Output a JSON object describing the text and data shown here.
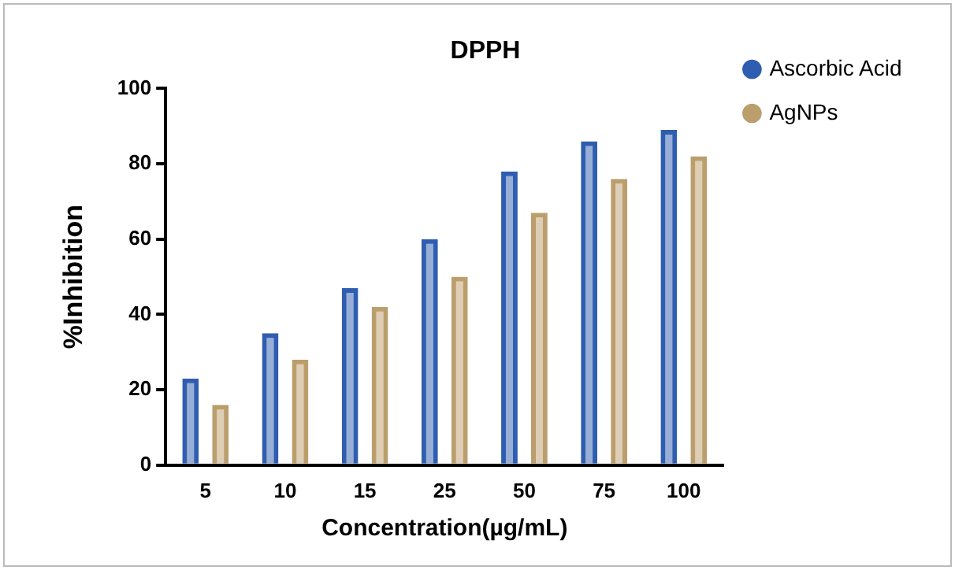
{
  "chart_data": {
    "type": "bar",
    "title": "DPPH",
    "xlabel": "Concentration(µg/mL)",
    "ylabel": "%Inhibition",
    "categories": [
      "5",
      "10",
      "15",
      "25",
      "50",
      "75",
      "100"
    ],
    "series": [
      {
        "name": "Ascorbic Acid",
        "color": "#2f5db0",
        "values": [
          23,
          35,
          47,
          60,
          78,
          86,
          89
        ]
      },
      {
        "name": "AgNPs",
        "color": "#bb9e6c",
        "values": [
          16,
          28,
          42,
          50,
          67,
          76,
          82
        ]
      }
    ],
    "ylim": [
      0,
      100
    ],
    "yticks": [
      0,
      20,
      40,
      60,
      80,
      100
    ],
    "grid": false,
    "legend": "top right"
  }
}
